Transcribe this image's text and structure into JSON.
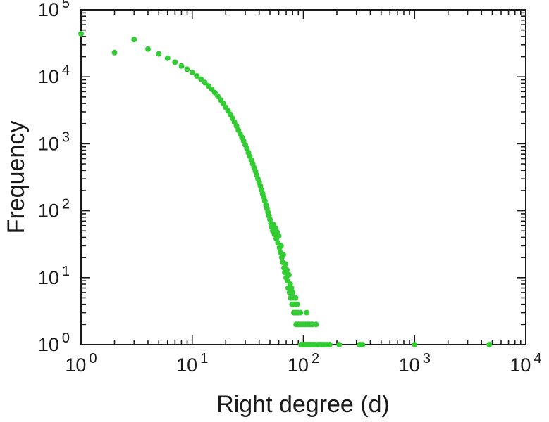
{
  "figure": {
    "background": "#ffffff",
    "frame_color": "#1a1a1a"
  },
  "chart_data": {
    "type": "scatter",
    "title": "",
    "xlabel": "Right degree (d)",
    "ylabel": "Frequency",
    "x_scale": "log",
    "y_scale": "log",
    "xlim": [
      1,
      10000
    ],
    "ylim": [
      1,
      100000
    ],
    "x_tick_exponents": [
      0,
      1,
      2,
      3,
      4
    ],
    "y_tick_exponents": [
      0,
      1,
      2,
      3,
      4,
      5
    ],
    "tick_label_base": "10",
    "grid": false,
    "legend": null,
    "point_color": "#33cc33",
    "points": [
      [
        1,
        44000
      ],
      [
        2,
        23000
      ],
      [
        3,
        36000
      ],
      [
        4,
        26000
      ],
      [
        5,
        22000
      ],
      [
        6,
        19000
      ],
      [
        7,
        16500
      ],
      [
        8,
        14500
      ],
      [
        9,
        13000
      ],
      [
        10,
        11600
      ],
      [
        11,
        10300
      ],
      [
        12,
        9200
      ],
      [
        13,
        8200
      ],
      [
        14,
        7300
      ],
      [
        15,
        6500
      ],
      [
        16,
        5800
      ],
      [
        17,
        5100
      ],
      [
        18,
        4500
      ],
      [
        19,
        4000
      ],
      [
        20,
        3500
      ],
      [
        21,
        3100
      ],
      [
        22,
        2750
      ],
      [
        23,
        2400
      ],
      [
        24,
        2100
      ],
      [
        25,
        1850
      ],
      [
        26,
        1600
      ],
      [
        27,
        1400
      ],
      [
        28,
        1250
      ],
      [
        29,
        1100
      ],
      [
        30,
        960
      ],
      [
        31,
        850
      ],
      [
        32,
        740
      ],
      [
        33,
        650
      ],
      [
        34,
        570
      ],
      [
        35,
        500
      ],
      [
        36,
        440
      ],
      [
        37,
        390
      ],
      [
        38,
        340
      ],
      [
        39,
        300
      ],
      [
        40,
        265
      ],
      [
        41,
        235
      ],
      [
        42,
        205
      ],
      [
        43,
        180
      ],
      [
        44,
        160
      ],
      [
        45,
        140
      ],
      [
        46,
        122
      ],
      [
        47,
        108
      ],
      [
        48,
        95
      ],
      [
        49,
        84
      ],
      [
        50,
        74
      ],
      [
        51,
        65
      ],
      [
        52,
        57
      ],
      [
        53,
        50
      ],
      [
        54,
        62
      ],
      [
        55,
        44
      ],
      [
        56,
        55
      ],
      [
        57,
        38
      ],
      [
        58,
        48
      ],
      [
        59,
        33
      ],
      [
        60,
        42
      ],
      [
        61,
        28
      ],
      [
        62,
        24
      ],
      [
        63,
        30
      ],
      [
        64,
        20
      ],
      [
        65,
        17
      ],
      [
        66,
        22
      ],
      [
        67,
        14
      ],
      [
        68,
        12
      ],
      [
        69,
        16
      ],
      [
        70,
        10
      ],
      [
        71,
        13
      ],
      [
        72,
        9
      ],
      [
        73,
        7
      ],
      [
        74,
        11
      ],
      [
        75,
        6
      ],
      [
        76,
        8
      ],
      [
        77,
        5
      ],
      [
        78,
        7
      ],
      [
        79,
        4
      ],
      [
        80,
        6
      ],
      [
        81,
        5
      ],
      [
        82,
        3
      ],
      [
        83,
        4
      ],
      [
        84,
        3
      ],
      [
        85,
        5
      ],
      [
        86,
        2
      ],
      [
        87,
        3
      ],
      [
        88,
        4
      ],
      [
        89,
        2
      ],
      [
        90,
        3
      ],
      [
        92,
        2
      ],
      [
        94,
        3
      ],
      [
        95,
        1
      ],
      [
        96,
        2
      ],
      [
        98,
        1
      ],
      [
        100,
        2
      ],
      [
        102,
        1
      ],
      [
        104,
        2
      ],
      [
        105,
        1
      ],
      [
        107,
        3
      ],
      [
        108,
        1
      ],
      [
        110,
        2
      ],
      [
        112,
        1
      ],
      [
        114,
        2
      ],
      [
        116,
        1
      ],
      [
        118,
        1
      ],
      [
        120,
        2
      ],
      [
        123,
        1
      ],
      [
        126,
        1
      ],
      [
        130,
        2
      ],
      [
        134,
        1
      ],
      [
        138,
        1
      ],
      [
        143,
        1
      ],
      [
        148,
        1
      ],
      [
        155,
        1
      ],
      [
        163,
        1
      ],
      [
        172,
        1
      ],
      [
        210,
        1
      ],
      [
        320,
        1
      ],
      [
        340,
        1
      ],
      [
        1000,
        1
      ],
      [
        4700,
        1
      ]
    ]
  }
}
